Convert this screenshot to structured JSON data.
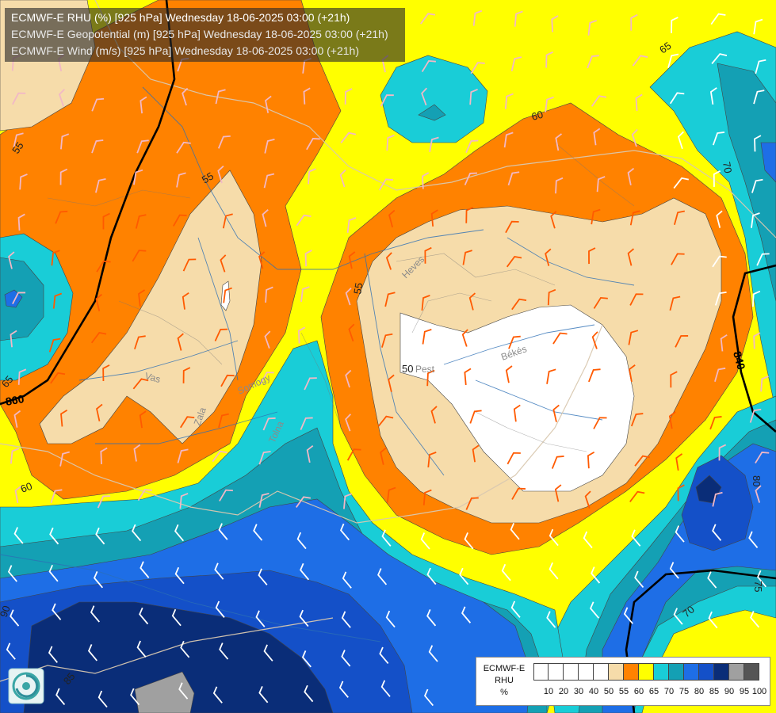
{
  "titles": [
    "ECMWF-E RHU (%) [925 hPa] Wednesday 18-06-2025 03:00 (+21h)",
    "ECMWF-E Geopotential (m) [925 hPa] Wednesday 18-06-2025 03:00 (+21h)",
    "ECMWF-E Wind (m/s) [925 hPa] Wednesday 18-06-2025 03:00 (+21h)"
  ],
  "contour_labels": [
    "55",
    "55",
    "55",
    "50",
    "60",
    "60",
    "65",
    "65",
    "70",
    "70",
    "75",
    "80",
    "85",
    "90"
  ],
  "geopotential_labels": [
    "860",
    "840"
  ],
  "region_labels": [
    "Heves",
    "Pest",
    "Békés",
    "Vas",
    "Zala",
    "Somogy",
    "Tolna"
  ],
  "legend": {
    "label_lines": [
      "ECMWF-E",
      "RHU",
      "%"
    ],
    "ticks": [
      "10",
      "20",
      "30",
      "40",
      "50",
      "55",
      "60",
      "65",
      "70",
      "75",
      "80",
      "85",
      "90",
      "95",
      "100"
    ],
    "colors": [
      "#ffffff",
      "#ffffff",
      "#ffffff",
      "#ffffff",
      "#ffffff",
      "#f6dcaa",
      "#ff8200",
      "#ffff00",
      "#19cdd7",
      "#14a0b4",
      "#1e6ee6",
      "#1450c8",
      "#0a2d78",
      "#a0a0a0",
      "#555555"
    ]
  },
  "colors": {
    "rhu_50": "#ffffff",
    "rhu_55": "#f6dcaa",
    "rhu_60": "#ff8200",
    "rhu_65": "#ffff00",
    "rhu_70": "#19cdd7",
    "rhu_75": "#14a0b4",
    "rhu_80": "#1e6ee6",
    "rhu_85": "#1450c8",
    "rhu_90": "#0a2d78",
    "rhu_95": "#a0a0a0"
  },
  "icons": {
    "logo": "ecmwf-swirl-icon"
  }
}
